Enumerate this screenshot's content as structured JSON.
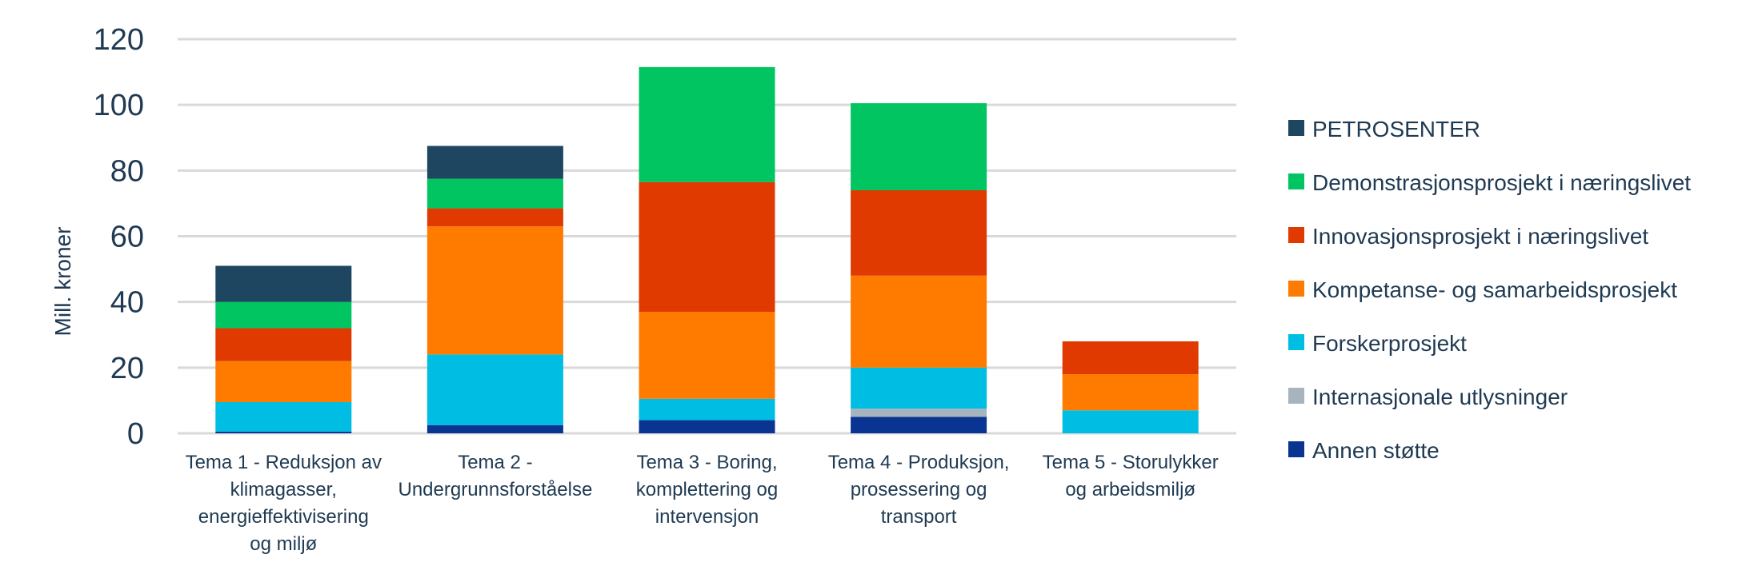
{
  "chart_data": {
    "type": "bar",
    "stacked": true,
    "title": "",
    "xlabel": "",
    "ylabel": "Mill. kroner",
    "ylim": [
      0,
      120
    ],
    "yticks": [
      0,
      20,
      40,
      60,
      80,
      100,
      120
    ],
    "grid": true,
    "legend_position": "right",
    "categories": [
      [
        "Tema 1 - Reduksjon av",
        "klimagasser,",
        "energieffektivisering",
        "og miljø"
      ],
      [
        "Tema 2 -",
        "Undergrunnsforståelse"
      ],
      [
        "Tema 3 - Boring,",
        "komplettering og",
        "intervensjon"
      ],
      [
        "Tema 4 - Produksjon,",
        "prosessering og",
        "transport"
      ],
      [
        "Tema 5 - Storulykker",
        "og arbeidsmiljø"
      ]
    ],
    "series": [
      {
        "name": "Annen støtte",
        "color": "#0a3492",
        "values": [
          0.5,
          2.5,
          4,
          5,
          0
        ]
      },
      {
        "name": "Internasjonale utlysninger",
        "color": "#a8b4bd",
        "values": [
          0,
          0,
          0,
          2.5,
          0
        ]
      },
      {
        "name": "Forskerprosjekt",
        "color": "#00bde3",
        "values": [
          9,
          21.5,
          6.5,
          12.5,
          7
        ]
      },
      {
        "name": "Kompetanse- og samarbeidsprosjekt",
        "color": "#ff7b00",
        "values": [
          12.5,
          39,
          26.5,
          28,
          11
        ]
      },
      {
        "name": "Innovasjonsprosjekt i næringslivet",
        "color": "#e03a00",
        "values": [
          10,
          5.5,
          39.5,
          26,
          10
        ]
      },
      {
        "name": "Demonstrasjonsprosjekt i næringslivet",
        "color": "#00c560",
        "values": [
          8,
          9,
          35,
          26.5,
          0
        ]
      },
      {
        "name": "PETROSENTER",
        "color": "#1f4660",
        "values": [
          11,
          10,
          0,
          0,
          0
        ]
      }
    ],
    "legend_order": [
      "PETROSENTER",
      "Demonstrasjonsprosjekt i næringslivet",
      "Innovasjonsprosjekt i næringslivet",
      "Kompetanse- og samarbeidsprosjekt",
      "Forskerprosjekt",
      "Internasjonale utlysninger",
      "Annen støtte"
    ],
    "colors": {
      "grid": "#d9d9d9",
      "text": "#1f3a52"
    }
  }
}
